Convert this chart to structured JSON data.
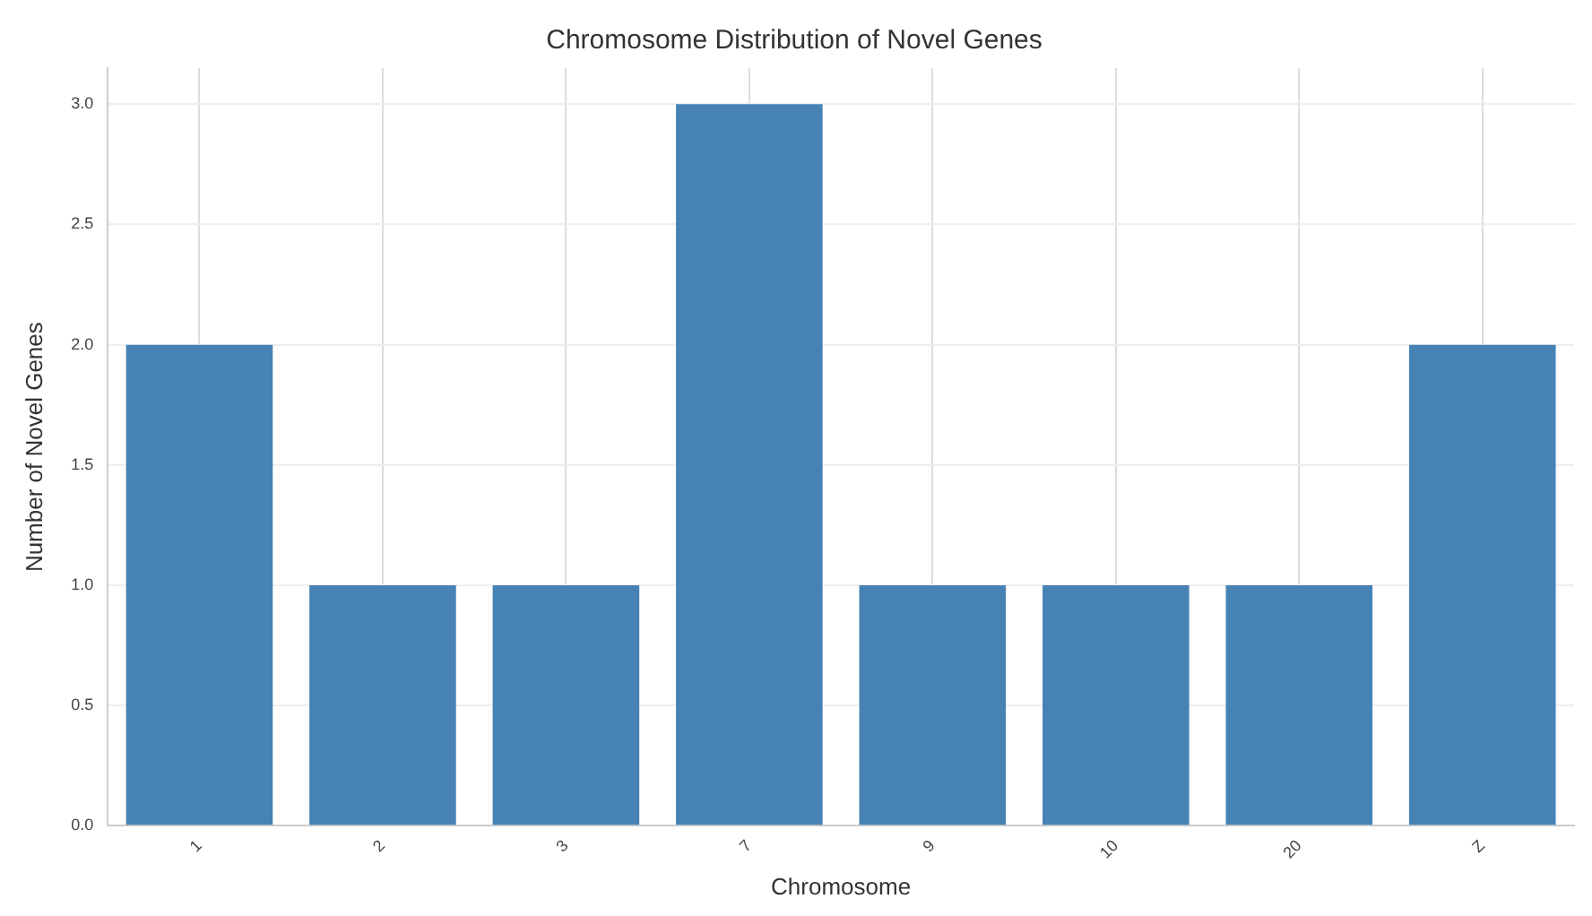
{
  "chart_data": {
    "type": "bar",
    "title": "Chromosome Distribution of Novel Genes",
    "xlabel": "Chromosome",
    "ylabel": "Number of Novel Genes",
    "categories": [
      "1",
      "2",
      "3",
      "7",
      "9",
      "10",
      "20",
      "Z"
    ],
    "values": [
      2,
      1,
      1,
      3,
      1,
      1,
      1,
      2
    ],
    "color": "#4682b4",
    "ylim": [
      0,
      3.15
    ],
    "yticks": [
      {
        "value": 0,
        "label": "0.0"
      },
      {
        "value": 0.5,
        "label": "0.5"
      },
      {
        "value": 1,
        "label": "1.0"
      },
      {
        "value": 1.5,
        "label": "1.5"
      },
      {
        "value": 2,
        "label": "2.0"
      },
      {
        "value": 2.5,
        "label": "2.5"
      },
      {
        "value": 3,
        "label": "3.0"
      }
    ],
    "grid": true,
    "legend": false
  }
}
